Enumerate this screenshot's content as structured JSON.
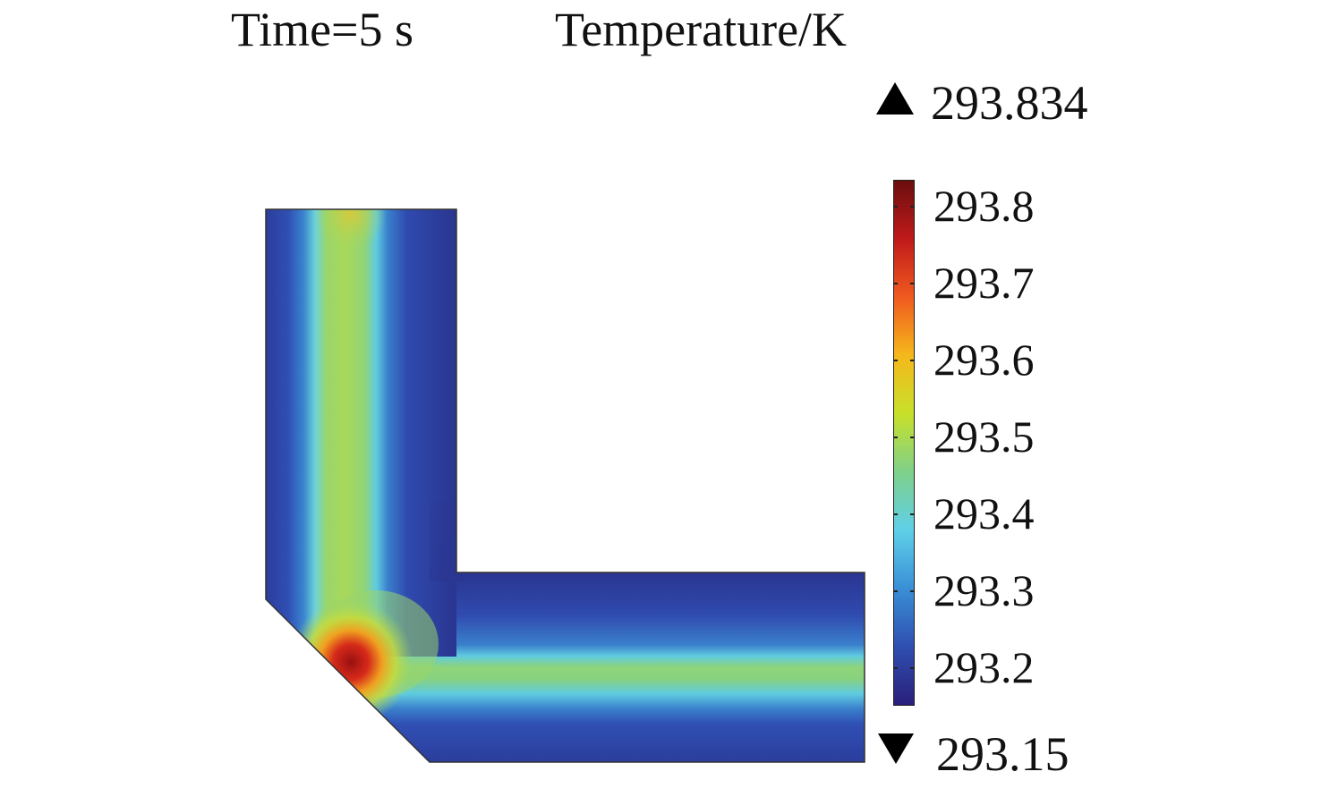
{
  "header": {
    "time_label": "Time=5 s",
    "quantity_label": "Temperature/K"
  },
  "colorbar": {
    "max_label": "293.834",
    "min_label": "293.15",
    "max_value": 293.834,
    "min_value": 293.15,
    "ticks": [
      "293.8",
      "293.7",
      "293.6",
      "293.5",
      "293.4",
      "293.3",
      "293.2"
    ],
    "colormap": [
      "#2a1f7a",
      "#2f4fb0",
      "#3a8fd6",
      "#5fd0e8",
      "#7fd08a",
      "#c8e02a",
      "#f5b81c",
      "#ef5a1f",
      "#c01a1a",
      "#6b0e0e"
    ]
  },
  "field": {
    "background": "#2e3ea0",
    "channel_peak": "#e12a1a"
  }
}
